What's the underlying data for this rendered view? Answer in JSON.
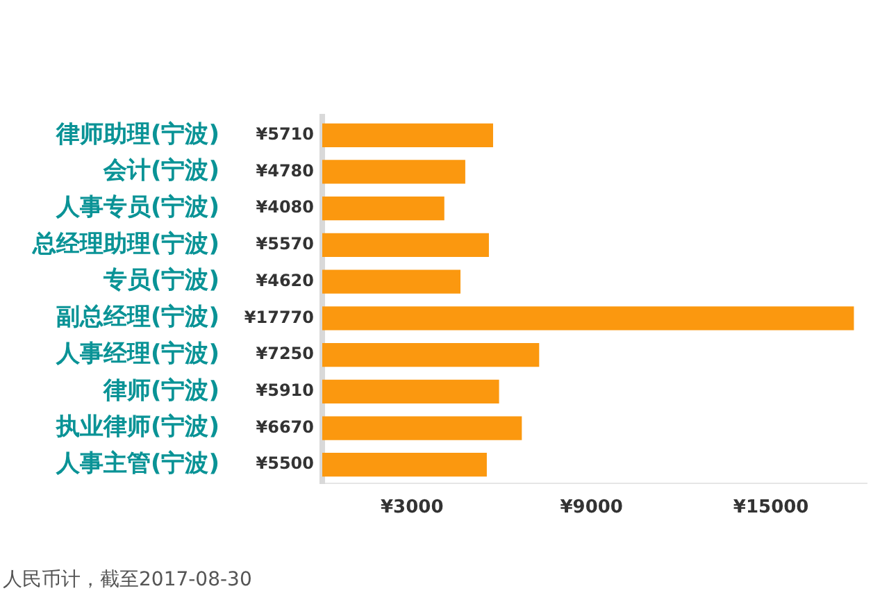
{
  "chart_data": {
    "type": "bar",
    "orientation": "horizontal",
    "categories": [
      "律师助理(宁波)",
      "会计(宁波)",
      "人事专员(宁波)",
      "总经理助理(宁波)",
      "专员(宁波)",
      "副总经理(宁波)",
      "人事经理(宁波)",
      "律师(宁波)",
      "执业律师(宁波)",
      "人事主管(宁波)"
    ],
    "values": [
      5710,
      4780,
      4080,
      5570,
      4620,
      17770,
      7250,
      5910,
      6670,
      5500
    ],
    "value_labels": [
      "¥5710",
      "¥4780",
      "¥4080",
      "¥5570",
      "¥4620",
      "¥17770",
      "¥7250",
      "¥5910",
      "¥6670",
      "¥5500"
    ],
    "color": "#fb980f",
    "xlim": [
      0,
      18200
    ],
    "xticks": [
      {
        "value": 3000,
        "label": "¥3000"
      },
      {
        "value": 9000,
        "label": "¥9000"
      },
      {
        "value": 15000,
        "label": "¥15000"
      }
    ],
    "grid": false,
    "legend": false,
    "annotations": [
      "人民币计，截至2017-08-30"
    ]
  }
}
